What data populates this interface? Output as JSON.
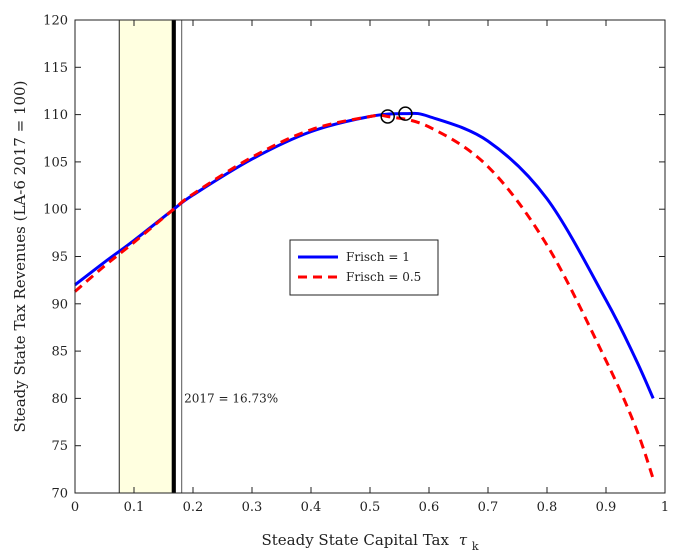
{
  "chart_data": {
    "type": "line",
    "xlabel": "Steady State Capital Tax",
    "xlabel_symbol": "τ",
    "xlabel_subscript": "k",
    "ylabel": "Steady State Tax Revenues (LA-6 2017 = 100)",
    "xlim": [
      0,
      1
    ],
    "ylim": [
      70,
      120
    ],
    "xticks": [
      "0",
      "0.1",
      "0.2",
      "0.3",
      "0.4",
      "0.5",
      "0.6",
      "0.7",
      "0.8",
      "0.9",
      "1"
    ],
    "yticks": [
      "70",
      "75",
      "80",
      "85",
      "90",
      "95",
      "100",
      "105",
      "110",
      "115",
      "120"
    ],
    "grid": false,
    "legend_position": "center",
    "series": [
      {
        "name": "Frisch = 1",
        "color": "#0000ff",
        "style": "solid",
        "x": [
          0,
          0.05,
          0.1,
          0.1673,
          0.2,
          0.3,
          0.4,
          0.5,
          0.56,
          0.6,
          0.7,
          0.8,
          0.9,
          0.95,
          0.98
        ],
        "y": [
          92.0,
          94.4,
          96.7,
          100.0,
          101.5,
          105.3,
          108.2,
          109.8,
          110.1,
          109.8,
          107.2,
          101.1,
          90.4,
          84.2,
          80.0
        ]
      },
      {
        "name": "Frisch = 0.5",
        "color": "#ff0000",
        "style": "dashed",
        "x": [
          0,
          0.05,
          0.1,
          0.1673,
          0.2,
          0.3,
          0.4,
          0.5,
          0.53,
          0.6,
          0.7,
          0.8,
          0.9,
          0.95,
          0.98
        ],
        "y": [
          91.3,
          94.0,
          96.5,
          100.0,
          101.6,
          105.5,
          108.4,
          109.8,
          109.8,
          108.7,
          104.5,
          96.2,
          84.0,
          77.0,
          71.5
        ]
      }
    ],
    "peaks": [
      {
        "x": 0.53,
        "y": 109.8
      },
      {
        "x": 0.56,
        "y": 110.1
      }
    ],
    "shaded_band": {
      "x0": 0.075,
      "x1": 0.17,
      "color": "#ffffe0"
    },
    "vline": {
      "x": 0.1673
    },
    "annotation": {
      "text": "2017 = 16.73%",
      "x": 0.185,
      "y": 80
    }
  }
}
